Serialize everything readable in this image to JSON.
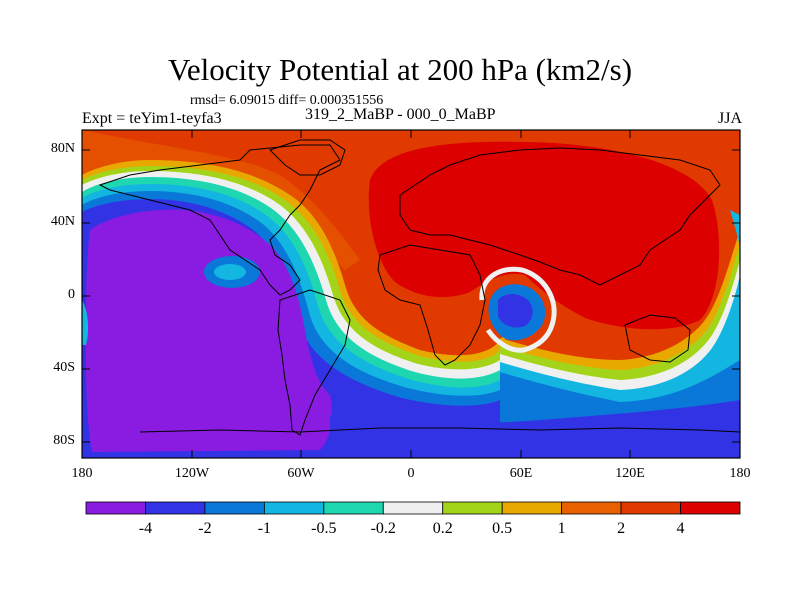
{
  "title": "Velocity Potential at 200 hPa (km2/s)",
  "stats": "rmsd= 6.09015 diff= 0.000351556",
  "experiment": "Expt = teYim1-teyfa3",
  "comparison": "319_2_MaBP - 000_0_MaBP",
  "season": "JJA",
  "axes": {
    "y_ticks": [
      "80N",
      "40N",
      "0",
      "40S",
      "80S"
    ],
    "x_ticks": [
      "180",
      "120W",
      "60W",
      "0",
      "60E",
      "120E",
      "180"
    ]
  },
  "colorbar": {
    "labels": [
      "-4",
      "-2",
      "-1",
      "-0.5",
      "-0.2",
      "0.2",
      "0.5",
      "1",
      "2",
      "4"
    ],
    "colors": [
      "#8a1be0",
      "#3333e6",
      "#0a78d8",
      "#12b6e0",
      "#1ed6b0",
      "#f0f0f0",
      "#a4d41a",
      "#e8a800",
      "#e86000",
      "#e03a00",
      "#dd0000"
    ]
  }
}
